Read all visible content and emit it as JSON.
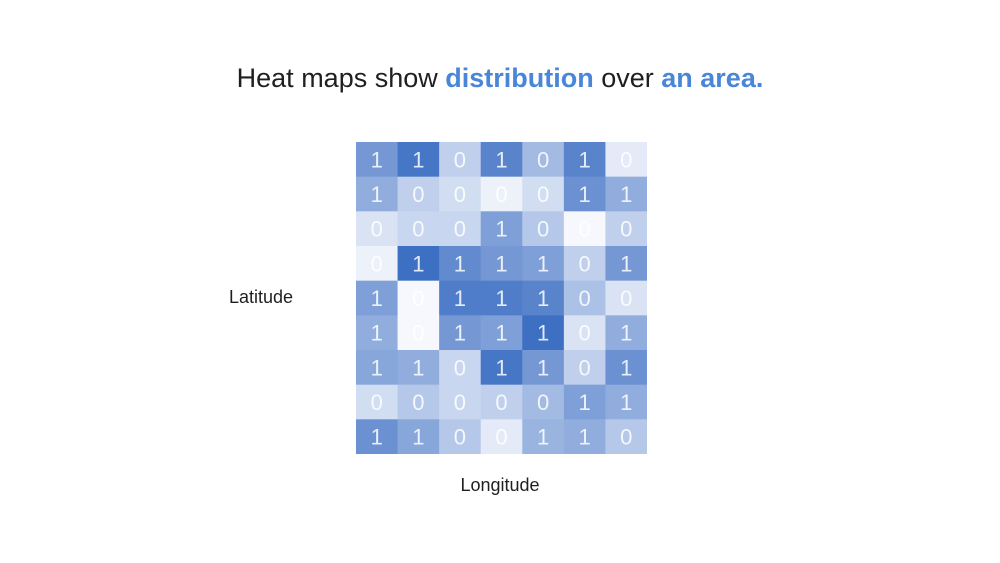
{
  "title": {
    "part1": "Heat maps show ",
    "highlight1": "distribution",
    "part2": " over ",
    "highlight2": "an area."
  },
  "colors": {
    "accent": "#4a86d8",
    "cell_low": "#f6f8fd",
    "cell_high": "#3d6fc3"
  },
  "chart_data": {
    "type": "heatmap",
    "xlabel": "Longitude",
    "ylabel": "Latitude",
    "grid": false,
    "legend": "none",
    "values": [
      [
        1,
        1,
        0,
        1,
        0,
        1,
        0
      ],
      [
        1,
        0,
        0,
        0,
        0,
        1,
        1
      ],
      [
        0,
        0,
        0,
        1,
        0,
        0,
        0
      ],
      [
        0,
        1,
        1,
        1,
        1,
        0,
        1
      ],
      [
        1,
        0,
        1,
        1,
        1,
        0,
        0
      ],
      [
        1,
        0,
        1,
        1,
        1,
        0,
        1
      ],
      [
        1,
        1,
        0,
        1,
        1,
        0,
        1
      ],
      [
        0,
        0,
        0,
        0,
        0,
        1,
        1
      ],
      [
        1,
        1,
        0,
        0,
        1,
        1,
        0
      ]
    ],
    "intensity": [
      [
        0.7,
        0.95,
        0.3,
        0.85,
        0.45,
        0.85,
        0.1
      ],
      [
        0.55,
        0.3,
        0.2,
        0.05,
        0.2,
        0.75,
        0.55
      ],
      [
        0.15,
        0.25,
        0.25,
        0.65,
        0.35,
        0.0,
        0.3
      ],
      [
        0.05,
        1.0,
        0.8,
        0.7,
        0.65,
        0.3,
        0.7
      ],
      [
        0.65,
        0.0,
        0.9,
        0.9,
        0.85,
        0.4,
        0.15
      ],
      [
        0.55,
        0.0,
        0.7,
        0.65,
        1.0,
        0.15,
        0.55
      ],
      [
        0.6,
        0.55,
        0.25,
        0.95,
        0.7,
        0.3,
        0.75
      ],
      [
        0.2,
        0.35,
        0.25,
        0.3,
        0.45,
        0.65,
        0.55
      ],
      [
        0.75,
        0.6,
        0.35,
        0.1,
        0.5,
        0.55,
        0.35
      ]
    ]
  }
}
